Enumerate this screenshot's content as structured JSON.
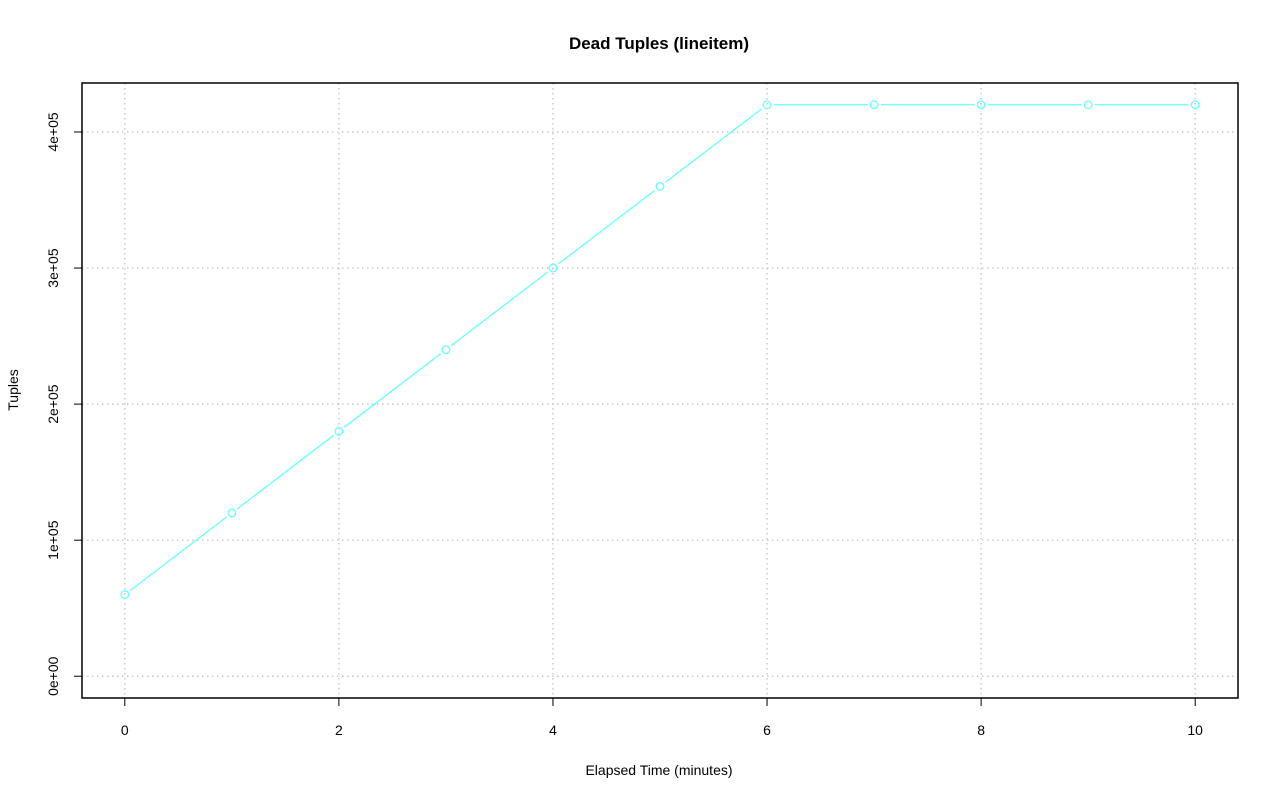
{
  "chart_data": {
    "type": "line",
    "title": "Dead Tuples (lineitem)",
    "xlabel": "Elapsed Time (minutes)",
    "ylabel": "Tuples",
    "xlim": [
      -0.4,
      10.4
    ],
    "ylim": [
      -16000,
      436000
    ],
    "x_ticks": [
      0,
      2,
      4,
      6,
      8,
      10
    ],
    "x_tick_labels": [
      "0",
      "2",
      "4",
      "6",
      "8",
      "10"
    ],
    "y_ticks": [
      0,
      100000,
      200000,
      300000,
      400000
    ],
    "y_tick_labels": [
      "0e+00",
      "1e+05",
      "2e+05",
      "3e+05",
      "4e+05"
    ],
    "x_grid": [
      0,
      2,
      4,
      6,
      8,
      10
    ],
    "y_grid": [
      0,
      100000,
      200000,
      300000,
      400000
    ],
    "grid": true,
    "series": [
      {
        "color": "#66ffff",
        "marker": "open-circle",
        "x": [
          0,
          1,
          2,
          3,
          4,
          5,
          6,
          7,
          8,
          9,
          10
        ],
        "values": [
          60000,
          120000,
          180000,
          240000,
          300000,
          360000,
          420000,
          420000,
          420000,
          420000,
          420000
        ]
      }
    ]
  }
}
